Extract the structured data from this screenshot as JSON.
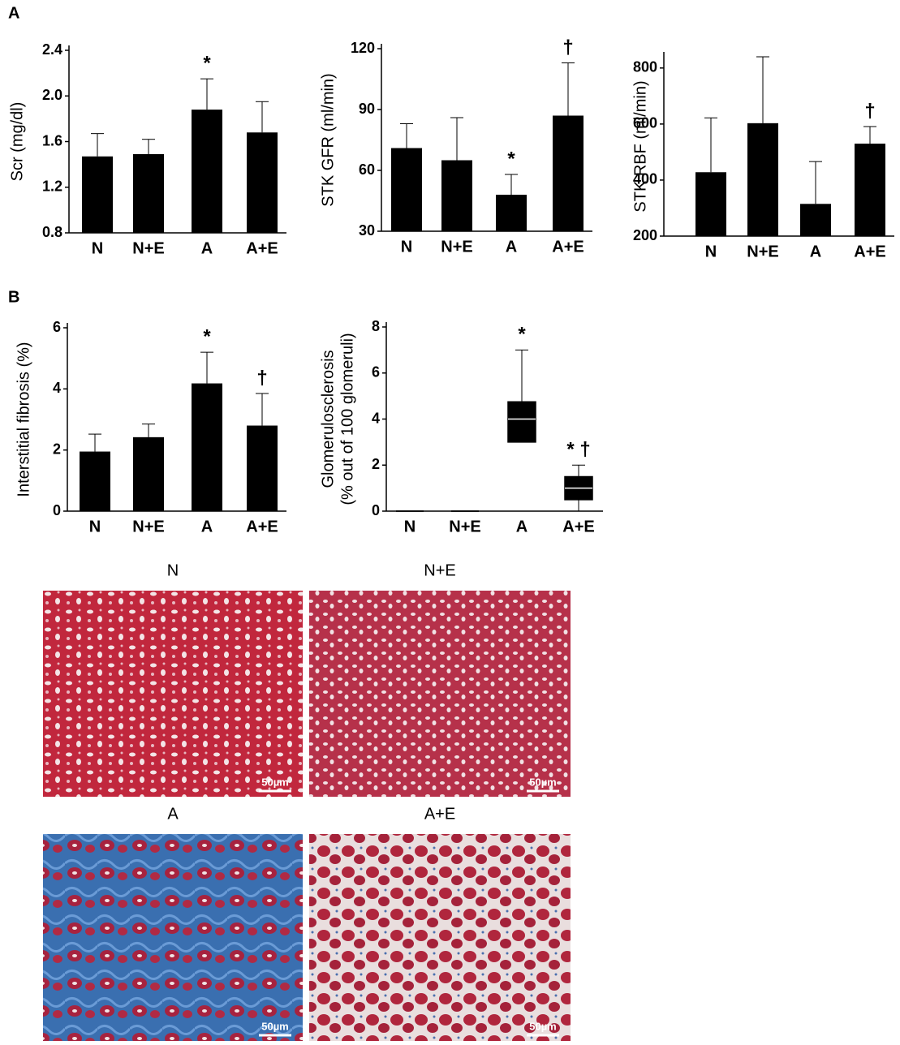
{
  "panels": [
    "A",
    "B"
  ],
  "chart_data": [
    {
      "type": "bar",
      "ylabel": "Scr (mg/dl)",
      "categories": [
        "N",
        "N+E",
        "A",
        "A+E"
      ],
      "values": [
        1.47,
        1.49,
        1.88,
        1.68
      ],
      "errors": [
        0.2,
        0.13,
        0.27,
        0.27
      ],
      "color": "#000000",
      "ylim": [
        0.8,
        2.4
      ],
      "yticks": [
        0.8,
        1.2,
        1.6,
        {
          "value": 2,
          "label": "2.0"
        },
        2.4
      ],
      "annotations": [
        {
          "text": "*",
          "category": "A"
        }
      ]
    },
    {
      "type": "bar",
      "ylabel": "STK GFR (ml/min)",
      "categories": [
        "N",
        "N+E",
        "A",
        "A+E"
      ],
      "values": [
        71,
        65,
        48,
        87
      ],
      "errors": [
        12,
        21,
        10,
        26
      ],
      "color": "#000000",
      "ylim": [
        30,
        120
      ],
      "yticks": [
        30,
        60,
        90,
        120
      ],
      "annotations": [
        {
          "text": "*",
          "category": "A"
        },
        {
          "text": "†",
          "category": "A+E"
        }
      ]
    },
    {
      "type": "bar",
      "ylabel": "STK RBF (ml/min)",
      "categories": [
        "N",
        "N+E",
        "A",
        "A+E"
      ],
      "values": [
        428,
        603,
        315,
        530
      ],
      "errors": [
        194,
        237,
        151,
        61
      ],
      "color": "#000000",
      "ylim": [
        200,
        840
      ],
      "yticks": [
        200,
        400,
        600,
        800
      ],
      "annotations": [
        {
          "text": "†",
          "category": "A+E"
        }
      ]
    },
    {
      "type": "bar",
      "ylabel": "Interstitial fibrosis (%)",
      "categories": [
        "N",
        "N+E",
        "A",
        "A+E"
      ],
      "values": [
        1.95,
        2.42,
        4.18,
        2.8
      ],
      "errors": [
        0.57,
        0.43,
        1.02,
        1.05
      ],
      "color": "#000000",
      "ylim": [
        0,
        6
      ],
      "yticks": [
        0,
        2,
        4,
        6
      ],
      "annotations": [
        {
          "text": "*",
          "category": "A"
        },
        {
          "text": "†",
          "category": "A+E"
        }
      ]
    },
    {
      "type": "box",
      "ylabel": [
        "Glomerulosclerosis",
        "(% out of 100 glomeruli)"
      ],
      "categories": [
        "N",
        "N+E",
        "A",
        "A+E"
      ],
      "boxes": [
        {
          "min": 0,
          "q1": 0,
          "median": 0,
          "q3": 0,
          "max": 0
        },
        {
          "min": 0,
          "q1": 0,
          "median": 0,
          "q3": 0,
          "max": 0
        },
        {
          "min": 3,
          "q1": 3,
          "median": 4,
          "q3": 4.75,
          "max": 7
        },
        {
          "min": 0,
          "q1": 0.5,
          "median": 1,
          "q3": 1.5,
          "max": 2
        }
      ],
      "color": "#000000",
      "ylim": [
        0,
        8
      ],
      "yticks": [
        0,
        2,
        4,
        6,
        8
      ],
      "annotations": [
        {
          "text": "*",
          "category": "A"
        },
        {
          "text": "* †",
          "category": "A+E"
        }
      ]
    }
  ],
  "images": [
    {
      "label": "N",
      "scale": "50µm"
    },
    {
      "label": "N+E",
      "scale": "50µm"
    },
    {
      "label": "A",
      "scale": "50µm"
    },
    {
      "label": "A+E",
      "scale": "50µm"
    }
  ]
}
